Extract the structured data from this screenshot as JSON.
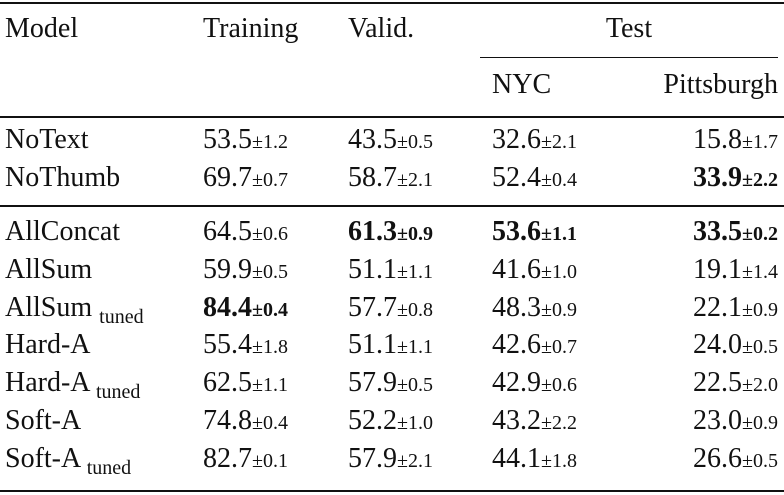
{
  "header": {
    "model": "Model",
    "training": "Training",
    "valid": "Valid.",
    "test": "Test",
    "nyc": "NYC",
    "pittsburgh": "Pittsburgh"
  },
  "body": [
    [
      {
        "model": "NoText",
        "cells": [
          {
            "value": "53.5",
            "pm": "±1.2"
          },
          {
            "value": "43.5",
            "pm": "±0.5"
          },
          {
            "value": "32.6",
            "pm": "±2.1"
          },
          {
            "value": "15.8",
            "pm": "±1.7"
          }
        ]
      },
      {
        "model": "NoThumb",
        "cells": [
          {
            "value": "69.7",
            "pm": "±0.7"
          },
          {
            "value": "58.7",
            "pm": "±2.1"
          },
          {
            "value": "52.4",
            "pm": "±0.4"
          },
          {
            "value": "33.9",
            "pm": "±2.2",
            "bold": true
          }
        ]
      }
    ],
    [
      {
        "model": "AllConcat",
        "cells": [
          {
            "value": "64.5",
            "pm": "±0.6"
          },
          {
            "value": "61.3",
            "pm": "±0.9",
            "bold": true
          },
          {
            "value": "53.6",
            "pm": "±1.1",
            "bold": true
          },
          {
            "value": "33.5",
            "pm": "±0.2",
            "bold": true
          }
        ]
      },
      {
        "model": "AllSum",
        "cells": [
          {
            "value": "59.9",
            "pm": "±0.5"
          },
          {
            "value": "51.1",
            "pm": "±1.1"
          },
          {
            "value": "41.6",
            "pm": "±1.0"
          },
          {
            "value": "19.1",
            "pm": "±1.4"
          }
        ]
      },
      {
        "model": "AllSum",
        "subscript": "tuned",
        "cells": [
          {
            "value": "84.4",
            "pm": "±0.4",
            "bold": true
          },
          {
            "value": "57.7",
            "pm": "±0.8"
          },
          {
            "value": "48.3",
            "pm": "±0.9"
          },
          {
            "value": "22.1",
            "pm": "±0.9"
          }
        ]
      },
      {
        "model": "Hard-A",
        "cells": [
          {
            "value": "55.4",
            "pm": "±1.8"
          },
          {
            "value": "51.1",
            "pm": "±1.1"
          },
          {
            "value": "42.6",
            "pm": "±0.7"
          },
          {
            "value": "24.0",
            "pm": "±0.5"
          }
        ]
      },
      {
        "model": "Hard-A",
        "subscript": "tuned",
        "cells": [
          {
            "value": "62.5",
            "pm": "±1.1"
          },
          {
            "value": "57.9",
            "pm": "±0.5"
          },
          {
            "value": "42.9",
            "pm": "±0.6"
          },
          {
            "value": "22.5",
            "pm": "±2.0"
          }
        ]
      },
      {
        "model": "Soft-A",
        "cells": [
          {
            "value": "74.8",
            "pm": "±0.4"
          },
          {
            "value": "52.2",
            "pm": "±1.0"
          },
          {
            "value": "43.2",
            "pm": "±2.2"
          },
          {
            "value": "23.0",
            "pm": "±0.9"
          }
        ]
      },
      {
        "model": "Soft-A",
        "subscript": "tuned",
        "cells": [
          {
            "value": "82.7",
            "pm": "±0.1"
          },
          {
            "value": "57.9",
            "pm": "±2.1"
          },
          {
            "value": "44.1",
            "pm": "±1.8"
          },
          {
            "value": "26.6",
            "pm": "±0.5"
          }
        ]
      }
    ]
  ]
}
